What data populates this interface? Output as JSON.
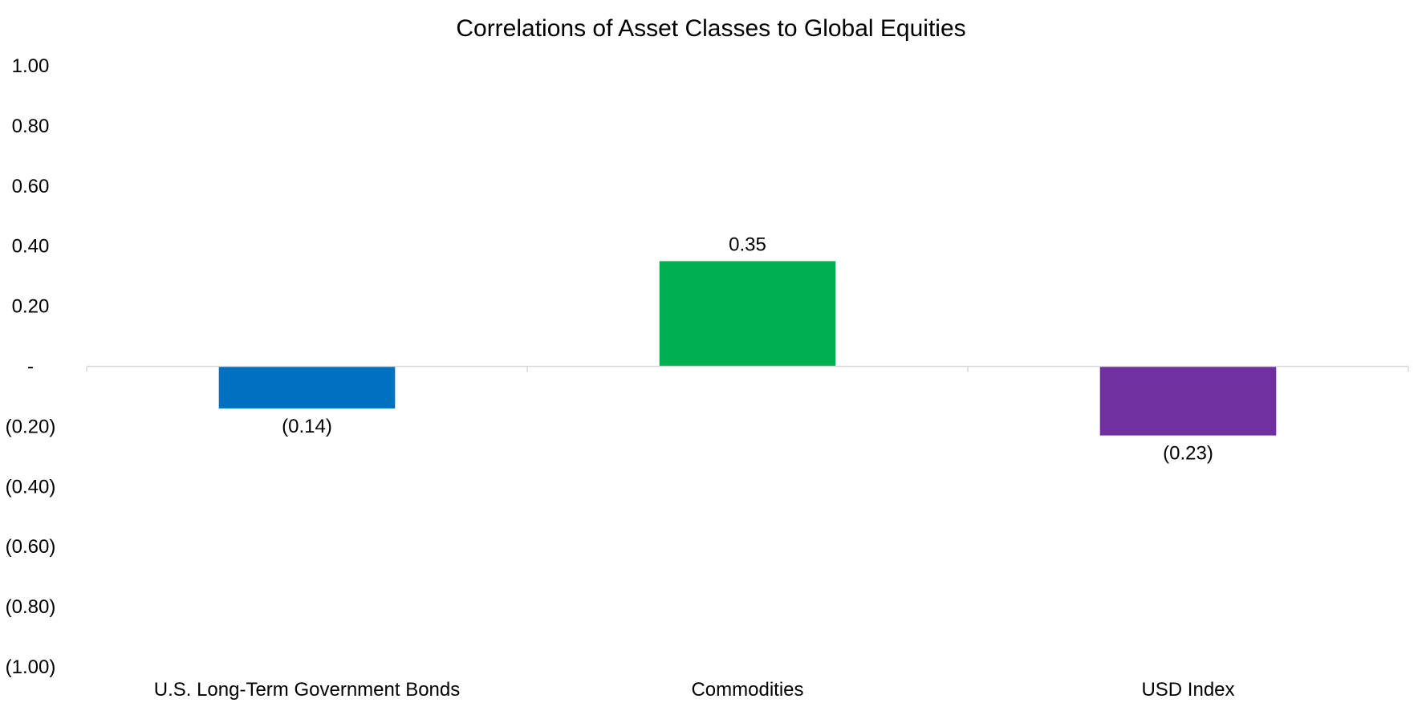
{
  "chart_data": {
    "type": "bar",
    "title": "Correlations of Asset Classes to Global Equities",
    "xlabel": "",
    "ylabel": "",
    "categories": [
      "U.S. Long-Term Government Bonds",
      "Commodities",
      "USD Index"
    ],
    "values": [
      -0.14,
      0.35,
      -0.23
    ],
    "data_labels": [
      "(0.14)",
      "0.35",
      "(0.23)"
    ],
    "colors": [
      "#0070C0",
      "#00B050",
      "#7030A0"
    ],
    "ylim": [
      -1.0,
      1.0
    ],
    "yticks": [
      1.0,
      0.8,
      0.6,
      0.4,
      0.2,
      0.0,
      -0.2,
      -0.4,
      -0.6,
      -0.8,
      -1.0
    ],
    "ytick_labels": [
      "1.00",
      "0.80",
      "0.60",
      "0.40",
      "0.20",
      "-",
      "(0.20)",
      "(0.40)",
      "(0.60)",
      "(0.80)",
      "(1.00)"
    ],
    "grid": false,
    "legend": "none",
    "axis_color": "#D9D9D9"
  }
}
